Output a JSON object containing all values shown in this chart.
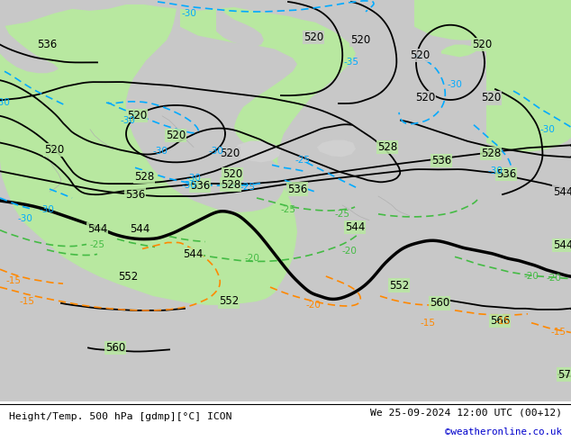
{
  "title_left": "Height/Temp. 500 hPa [gdmp][°C] ICON",
  "title_right": "We 25-09-2024 12:00 UTC (00+12)",
  "credit": "©weatheronline.co.uk",
  "land_green": "#b8e8a0",
  "sea_gray": "#c8c8c8",
  "border_gray": "#aaaaaa",
  "cyan_color": "#00aaff",
  "green_color": "#44bb44",
  "orange_color": "#ff8800",
  "black_color": "#000000",
  "bottom_white": "#ffffff"
}
